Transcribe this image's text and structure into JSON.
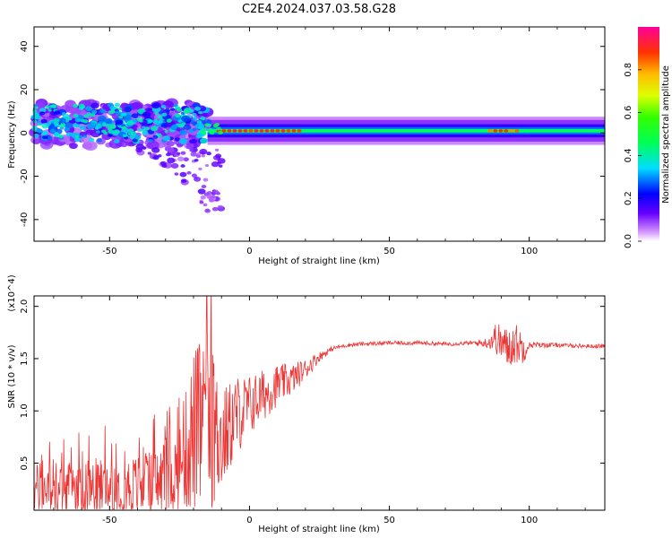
{
  "title": "C2E4.2024.037.03.58.G28",
  "colors": {
    "snr_line": "#ee3333",
    "axis": "#000000"
  },
  "chart_data": [
    {
      "type": "heatmap",
      "name": "spectrogram",
      "xlabel": "Height of straight line (km)",
      "ylabel": "Frequency (Hz)",
      "xlim": [
        -77,
        127
      ],
      "ylim": [
        -50,
        49
      ],
      "xticks": [
        -50,
        0,
        50,
        100
      ],
      "yticks": [
        -40,
        -20,
        0,
        20,
        40
      ],
      "colorbar": {
        "label": "Normalized spectral amplitude",
        "range": [
          0,
          1
        ],
        "ticks": [
          0.0,
          0.2,
          0.4,
          0.6,
          0.8
        ],
        "colormap": "rainbow (purple-blue-cyan-green-yellow-orange-red-magenta)"
      },
      "bands": [
        {
          "x_start": -77,
          "x_end": -15,
          "f_center": 5,
          "f_spread": 8,
          "amplitude": 0.3,
          "note": "scattered noisy multi-path spots"
        },
        {
          "x_start": -75,
          "x_end": -40,
          "f_center": 9,
          "f_spread": 3,
          "amplitude": 0.4
        },
        {
          "x_start": -40,
          "x_end": -15,
          "f_center": -12,
          "f_spread": 10,
          "amplitude": 0.15,
          "note": "drifting branch down to about -37 Hz"
        },
        {
          "x_start": -15,
          "x_end": 127,
          "f_center": 1,
          "f_spread": 3,
          "amplitude": 0.45,
          "note": "stable carrier band"
        },
        {
          "x_start": -12,
          "x_end": 17,
          "f_center": 1,
          "f_spread": 0.5,
          "amplitude": 0.85
        },
        {
          "x_start": 85,
          "x_end": 95,
          "f_center": 1,
          "f_spread": 0.5,
          "amplitude": 0.8
        }
      ]
    },
    {
      "type": "line",
      "name": "snr",
      "xlabel": "Height of straight line (km)",
      "ylabel": "SNR (10 * v/v)",
      "y_multiplier": "(x10^4)",
      "xlim": [
        -77,
        127
      ],
      "ylim": [
        0.05,
        2.1
      ],
      "xticks": [
        -50,
        0,
        50,
        100
      ],
      "yticks": [
        0.5,
        1.0,
        1.5,
        2.0
      ],
      "series": [
        {
          "name": "SNR",
          "color": "#ee3333",
          "x": [
            -77,
            -70,
            -60,
            -50,
            -40,
            -30,
            -25,
            -20,
            -15,
            -10,
            -5,
            0,
            5,
            10,
            15,
            20,
            25,
            30,
            35,
            40,
            50,
            60,
            70,
            80,
            85,
            88,
            92,
            95,
            98,
            100,
            110,
            120,
            127
          ],
          "y": [
            0.25,
            0.25,
            0.25,
            0.27,
            0.28,
            0.33,
            0.45,
            0.8,
            0.9,
            0.7,
            0.95,
            1.05,
            1.15,
            1.25,
            1.3,
            1.4,
            1.52,
            1.6,
            1.63,
            1.64,
            1.65,
            1.65,
            1.64,
            1.65,
            1.65,
            1.7,
            1.6,
            1.65,
            1.6,
            1.63,
            1.63,
            1.62,
            1.62
          ],
          "noise_amplitude": [
            0.25,
            0.25,
            0.28,
            0.3,
            0.3,
            0.35,
            0.4,
            0.8,
            0.9,
            0.5,
            0.4,
            0.3,
            0.25,
            0.2,
            0.15,
            0.1,
            0.05,
            0.02,
            0.02,
            0.02,
            0.02,
            0.02,
            0.02,
            0.02,
            0.05,
            0.15,
            0.2,
            0.2,
            0.15,
            0.03,
            0.02,
            0.02,
            0.02
          ]
        }
      ]
    }
  ]
}
